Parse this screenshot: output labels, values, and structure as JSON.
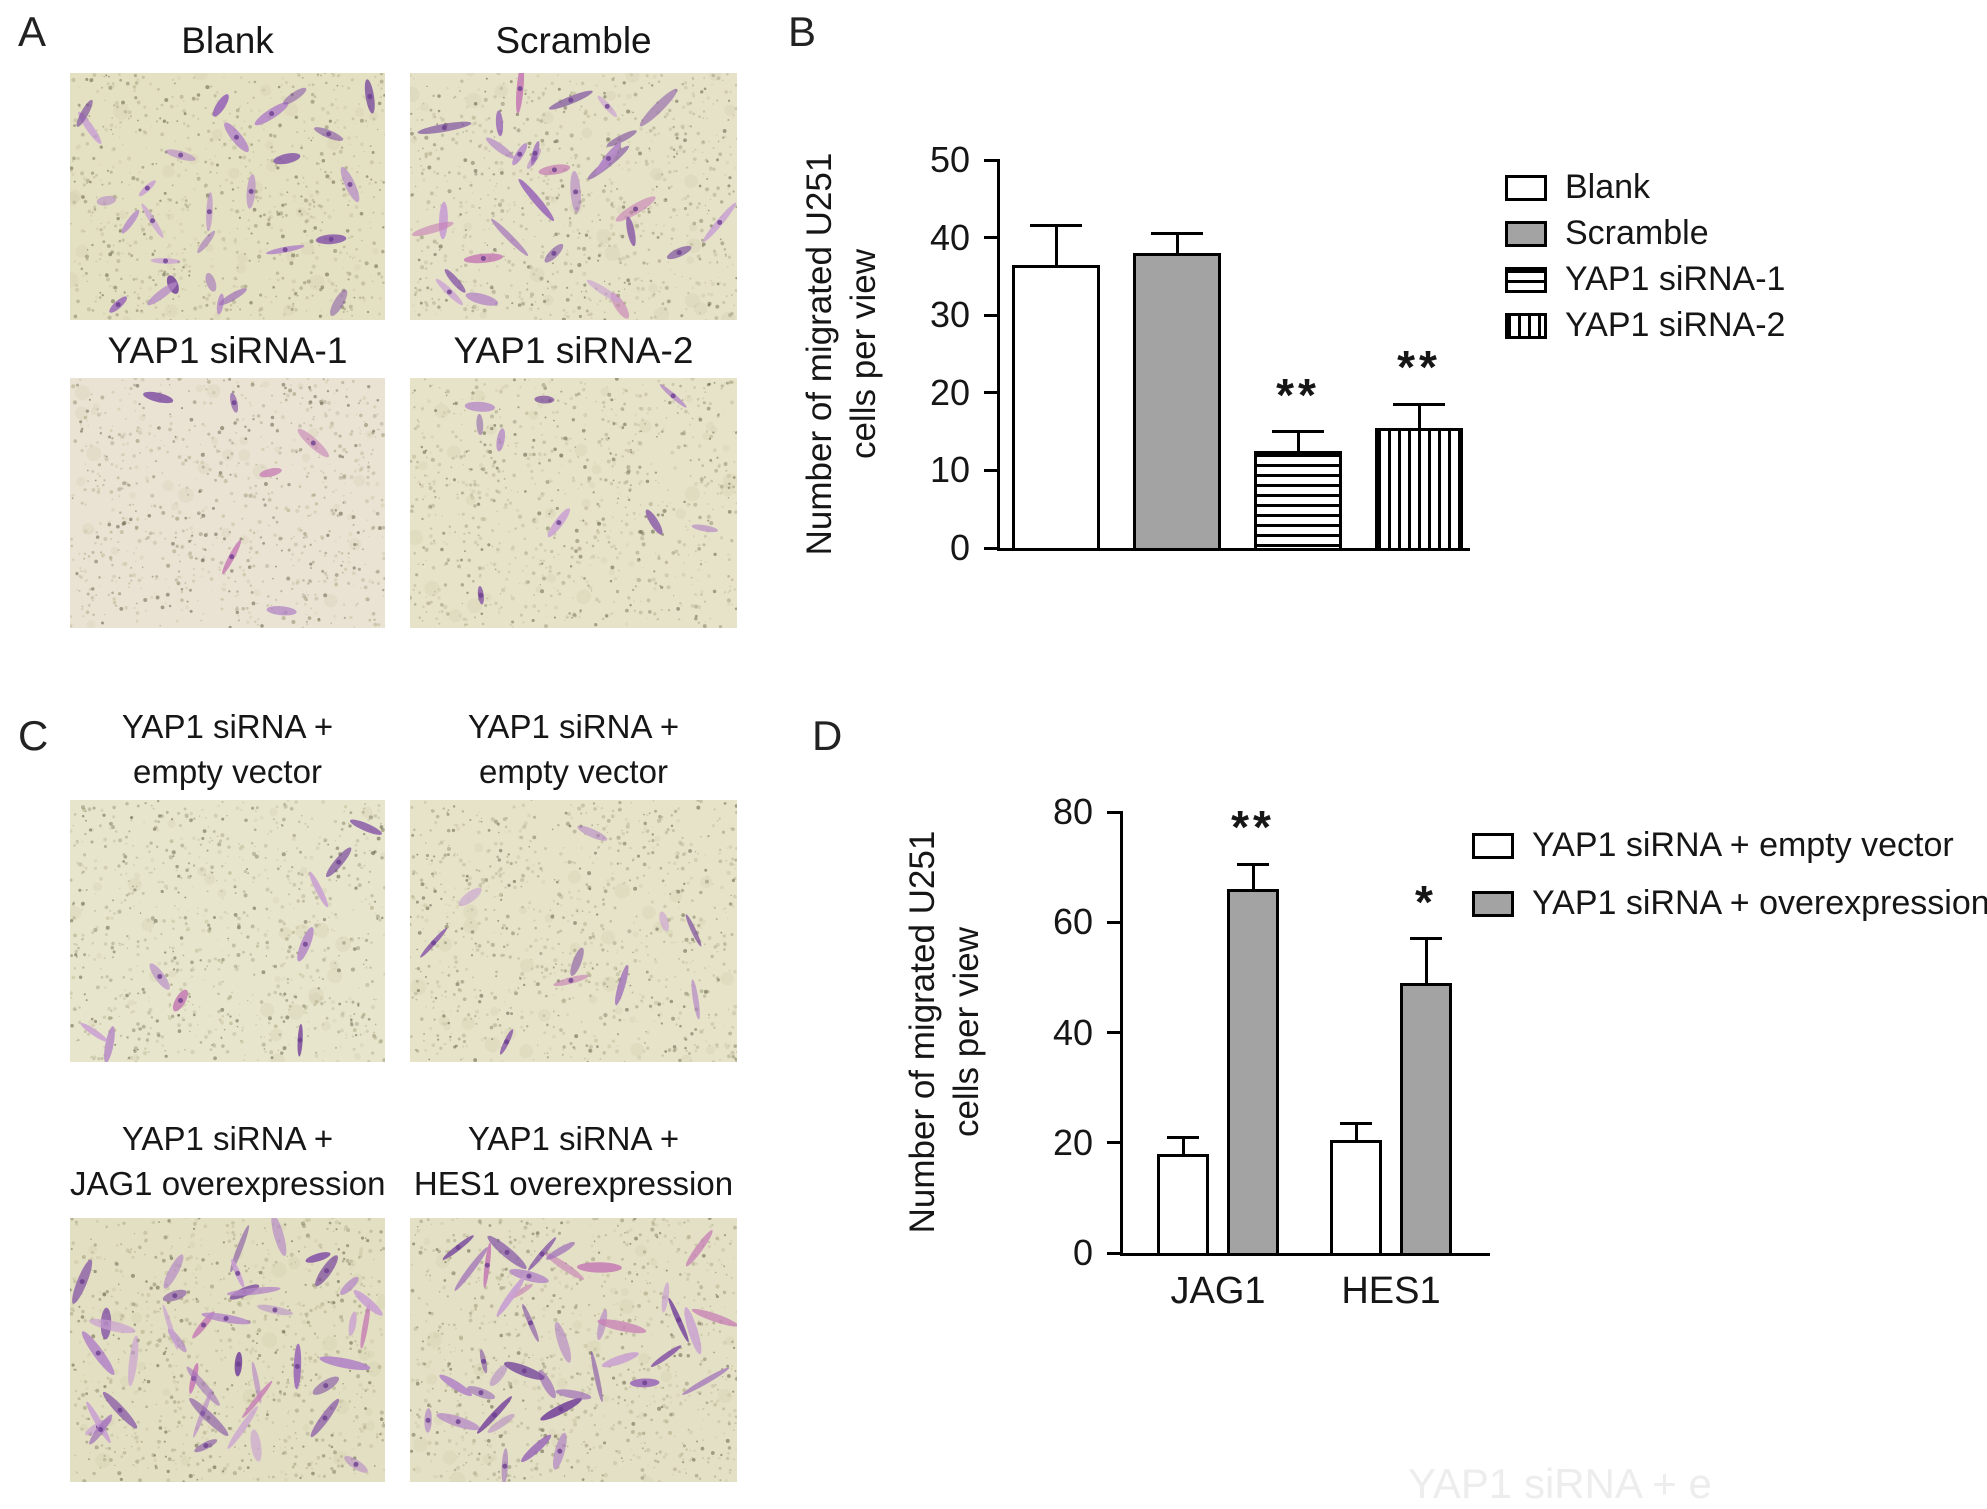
{
  "panels": {
    "A": {
      "letter": "A",
      "micrographs": [
        {
          "caption": "Blank",
          "cells": 28,
          "bg": "#e4e0c2"
        },
        {
          "caption": "Scramble",
          "cells": 30,
          "bg": "#e6e2c8"
        },
        {
          "caption": "YAP1 siRNA-1",
          "cells": 6,
          "bg": "#eae3d3"
        },
        {
          "caption": "YAP1 siRNA-2",
          "cells": 9,
          "bg": "#e7e3c9"
        }
      ]
    },
    "B": {
      "letter": "B"
    },
    "C": {
      "letter": "C",
      "micrographs": [
        {
          "caption_line1": "YAP1 siRNA +",
          "caption_line2": "empty vector",
          "cells": 9,
          "bg": "#e8e5cd"
        },
        {
          "caption_line1": "YAP1 siRNA +",
          "caption_line2": "empty vector",
          "cells": 10,
          "bg": "#e6e3c9"
        },
        {
          "caption_line1": "YAP1 siRNA +",
          "caption_line2": "JAG1 overexpression",
          "cells": 42,
          "bg": "#e3dfc2"
        },
        {
          "caption_line1": "YAP1 siRNA +",
          "caption_line2": "HES1 overexpression",
          "cells": 40,
          "bg": "#e4e0c5"
        }
      ]
    },
    "D": {
      "letter": "D"
    }
  },
  "chart_data": [
    {
      "type": "bar",
      "panel": "B",
      "ylabel_line1": "Number of migrated U251",
      "ylabel_line2": "cells per view",
      "ylim": [
        0,
        50
      ],
      "yticks": [
        0,
        10,
        20,
        30,
        40,
        50
      ],
      "categories": [
        "Blank",
        "Scramble",
        "YAP1 siRNA-1",
        "YAP1 siRNA-2"
      ],
      "values": [
        36.5,
        38,
        12.5,
        15.5
      ],
      "errors": [
        5,
        2.5,
        2.5,
        3
      ],
      "significance": [
        "",
        "",
        "**",
        "**"
      ],
      "fills": [
        "white",
        "gray",
        "hstripe",
        "vstripe"
      ],
      "legend": [
        "Blank",
        "Scramble",
        "YAP1 siRNA-1",
        "YAP1 siRNA-2"
      ],
      "legend_position": "right",
      "grid": false
    },
    {
      "type": "bar",
      "panel": "D",
      "ylabel_line1": "Number of migrated U251",
      "ylabel_line2": "cells per view",
      "ylim": [
        0,
        80
      ],
      "yticks": [
        0,
        20,
        40,
        60,
        80
      ],
      "categories": [
        "JAG1",
        "HES1"
      ],
      "series": [
        {
          "name": "YAP1 siRNA + empty vector",
          "fill": "white",
          "values": [
            18,
            20.5
          ],
          "errors": [
            3,
            3
          ],
          "significance": [
            "",
            ""
          ]
        },
        {
          "name": "YAP1 siRNA + overexpression",
          "fill": "gray",
          "values": [
            66,
            49
          ],
          "errors": [
            4.5,
            8
          ],
          "significance": [
            "**",
            "*"
          ]
        }
      ],
      "legend_position": "right",
      "grid": false
    }
  ],
  "colors": {
    "bar_gray": "#a3a3a3",
    "bar_white": "#ffffff",
    "outline": "#000000",
    "cell_stain": [
      "#8a5ca8",
      "#9c6cb8",
      "#b488c6",
      "#c9a0d2",
      "#7d4f9e",
      "#c77fb5"
    ]
  },
  "watermark": {
    "text": "YAP1 siRNA + e",
    "color": "#ededed"
  }
}
